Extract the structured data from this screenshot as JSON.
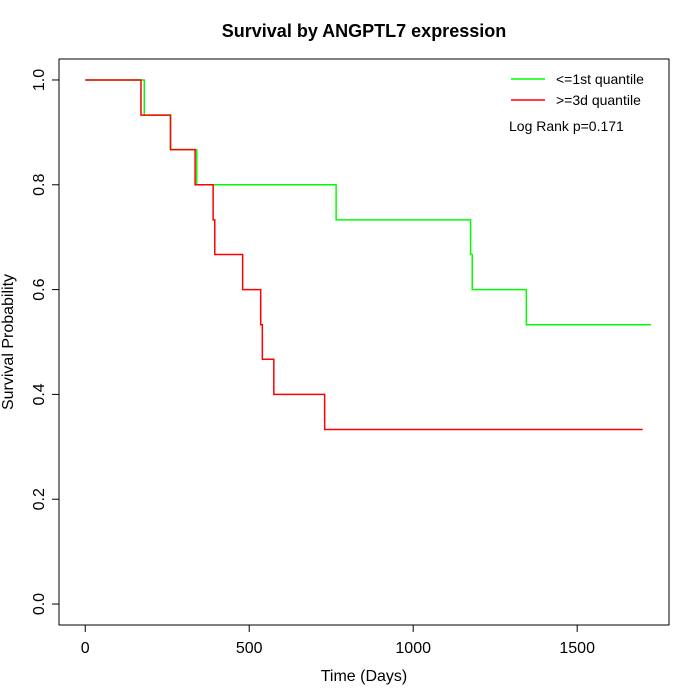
{
  "chart_data": {
    "type": "line",
    "title": "Survival by ANGPTL7 expression",
    "xlabel": "Time (Days)",
    "ylabel": "Survival Probability",
    "xlim": [
      -80,
      1780
    ],
    "ylim": [
      -0.04,
      1.04
    ],
    "x_ticks": [
      0,
      500,
      1000,
      1500
    ],
    "x_tick_labels": [
      "0",
      "500",
      "1000",
      "1500"
    ],
    "y_ticks": [
      0.0,
      0.2,
      0.4,
      0.6,
      0.8,
      1.0
    ],
    "y_tick_labels": [
      "0.0",
      "0.2",
      "0.4",
      "0.6",
      "0.8",
      "1.0"
    ],
    "grid": false,
    "legend_position": "top-right",
    "annotation": "Log Rank p=0.171",
    "series": [
      {
        "name": "<=1st quantile",
        "color": "#00ff00",
        "step_x": [
          0,
          180,
          260,
          340,
          765,
          1175,
          1180,
          1345,
          1725
        ],
        "step_y": [
          1.0,
          0.933,
          0.867,
          0.8,
          0.733,
          0.667,
          0.6,
          0.533,
          0.533
        ]
      },
      {
        "name": ">=3d quantile",
        "color": "#ff0000",
        "step_x": [
          0,
          170,
          260,
          335,
          390,
          395,
          480,
          535,
          540,
          575,
          730,
          1700
        ],
        "step_y": [
          1.0,
          0.933,
          0.867,
          0.8,
          0.733,
          0.667,
          0.6,
          0.533,
          0.467,
          0.4,
          0.333,
          0.333
        ]
      }
    ]
  }
}
